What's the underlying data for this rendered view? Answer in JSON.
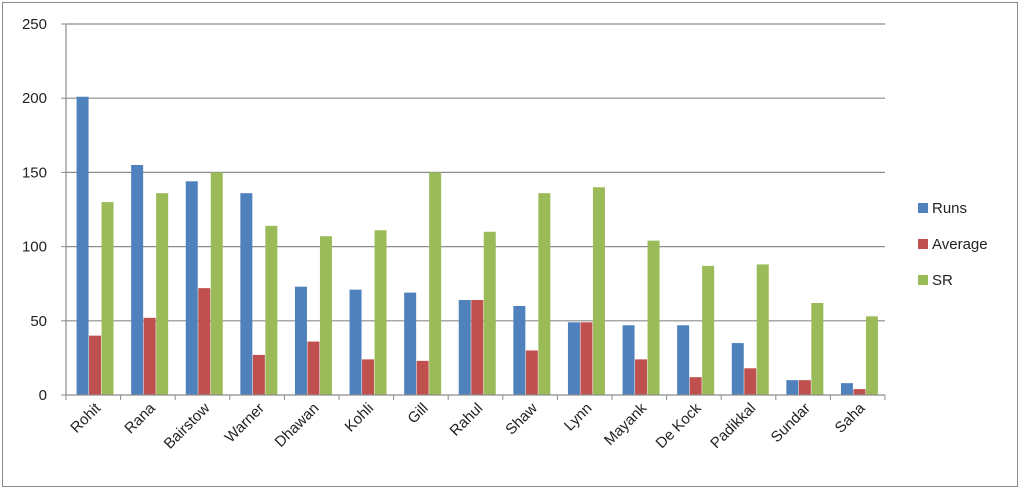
{
  "chart_data": {
    "type": "bar",
    "title": "",
    "xlabel": "",
    "ylabel": "",
    "ylim": [
      0,
      250
    ],
    "yticks": [
      0,
      50,
      100,
      150,
      200,
      250
    ],
    "grid": true,
    "legend_position": "right",
    "categories": [
      "Rohit",
      "Rana",
      "Bairstow",
      "Warner",
      "Dhawan",
      "Kohli",
      "Gill",
      "Rahul",
      "Shaw",
      "Lynn",
      "Mayank",
      "De Kock",
      "Padikkal",
      "Sundar",
      "Saha"
    ],
    "series": [
      {
        "name": "Runs",
        "color": "#4f81bd",
        "values": [
          201,
          155,
          144,
          136,
          73,
          71,
          69,
          64,
          60,
          49,
          47,
          47,
          35,
          10,
          8
        ]
      },
      {
        "name": "Average",
        "color": "#c0504d",
        "values": [
          40,
          52,
          72,
          27,
          36,
          24,
          23,
          64,
          30,
          49,
          24,
          12,
          18,
          10,
          4
        ]
      },
      {
        "name": "SR",
        "color": "#9bbb59",
        "values": [
          130,
          136,
          150,
          114,
          107,
          111,
          150,
          110,
          136,
          140,
          104,
          87,
          88,
          62,
          53
        ]
      }
    ]
  }
}
